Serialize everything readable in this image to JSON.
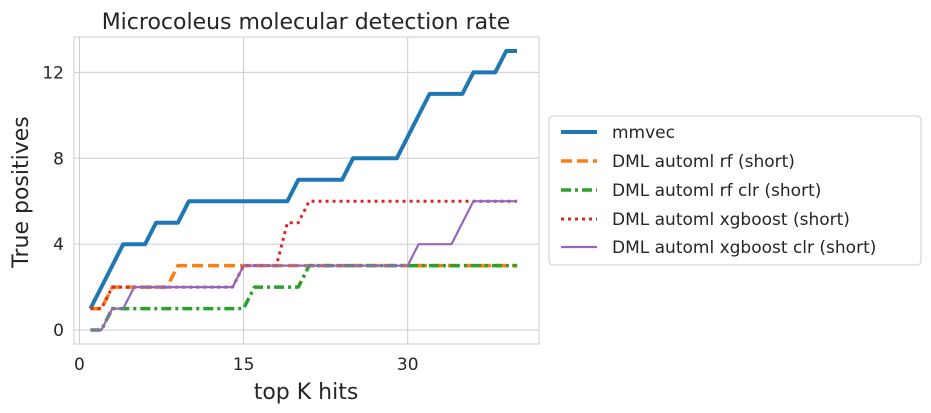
{
  "chart_data": {
    "type": "line",
    "title": "Microcoleus molecular detection rate",
    "xlabel": "top K hits",
    "ylabel": "True positives",
    "xlim": [
      -0.5,
      42
    ],
    "ylim": [
      -0.65,
      13.65
    ],
    "xticks": [
      0,
      15,
      30
    ],
    "yticks": [
      0,
      4,
      8,
      12
    ],
    "grid": true,
    "legend_position": "right-outside",
    "x": [
      1,
      2,
      3,
      4,
      5,
      6,
      7,
      8,
      9,
      10,
      11,
      12,
      13,
      14,
      15,
      16,
      17,
      18,
      19,
      20,
      21,
      22,
      23,
      24,
      25,
      26,
      27,
      28,
      29,
      30,
      31,
      32,
      33,
      34,
      35,
      36,
      37,
      38,
      39,
      40
    ],
    "series": [
      {
        "name": "mmvec",
        "color": "#1f77b4",
        "style": "solid",
        "width": 4,
        "values": [
          1,
          2,
          3,
          4,
          4,
          4,
          5,
          5,
          5,
          6,
          6,
          6,
          6,
          6,
          6,
          6,
          6,
          6,
          6,
          7,
          7,
          7,
          7,
          7,
          8,
          8,
          8,
          8,
          8,
          9,
          10,
          11,
          11,
          11,
          11,
          12,
          12,
          12,
          13,
          13
        ]
      },
      {
        "name": "DML automl rf (short)",
        "color": "#ff7f0e",
        "style": "dashed",
        "width": 3.5,
        "values": [
          1,
          1,
          2,
          2,
          2,
          2,
          2,
          2,
          3,
          3,
          3,
          3,
          3,
          3,
          3,
          3,
          3,
          3,
          3,
          3,
          3,
          3,
          3,
          3,
          3,
          3,
          3,
          3,
          3,
          3,
          3,
          3,
          3,
          3,
          3,
          3,
          3,
          3,
          3,
          3
        ]
      },
      {
        "name": "DML automl rf clr (short)",
        "color": "#2ca02c",
        "style": "dashdot",
        "width": 3.5,
        "values": [
          0,
          0,
          1,
          1,
          1,
          1,
          1,
          1,
          1,
          1,
          1,
          1,
          1,
          1,
          1,
          2,
          2,
          2,
          2,
          2,
          3,
          3,
          3,
          3,
          3,
          3,
          3,
          3,
          3,
          3,
          3,
          3,
          3,
          3,
          3,
          3,
          3,
          3,
          3,
          3
        ]
      },
      {
        "name": "DML automl xgboost (short)",
        "color": "#d62728",
        "style": "dotted",
        "width": 3,
        "values": [
          1,
          1,
          2,
          2,
          2,
          2,
          2,
          2,
          2,
          2,
          2,
          2,
          2,
          2,
          3,
          3,
          3,
          3,
          5,
          5,
          6,
          6,
          6,
          6,
          6,
          6,
          6,
          6,
          6,
          6,
          6,
          6,
          6,
          6,
          6,
          6,
          6,
          6,
          6,
          6
        ]
      },
      {
        "name": "DML automl xgboost clr (short)",
        "color": "#9467bd",
        "style": "solid",
        "width": 2.2,
        "values": [
          0,
          0,
          1,
          1,
          2,
          2,
          2,
          2,
          2,
          2,
          2,
          2,
          2,
          2,
          3,
          3,
          3,
          3,
          3,
          3,
          3,
          3,
          3,
          3,
          3,
          3,
          3,
          3,
          3,
          3,
          4,
          4,
          4,
          4,
          5,
          6,
          6,
          6,
          6,
          6
        ]
      }
    ]
  }
}
